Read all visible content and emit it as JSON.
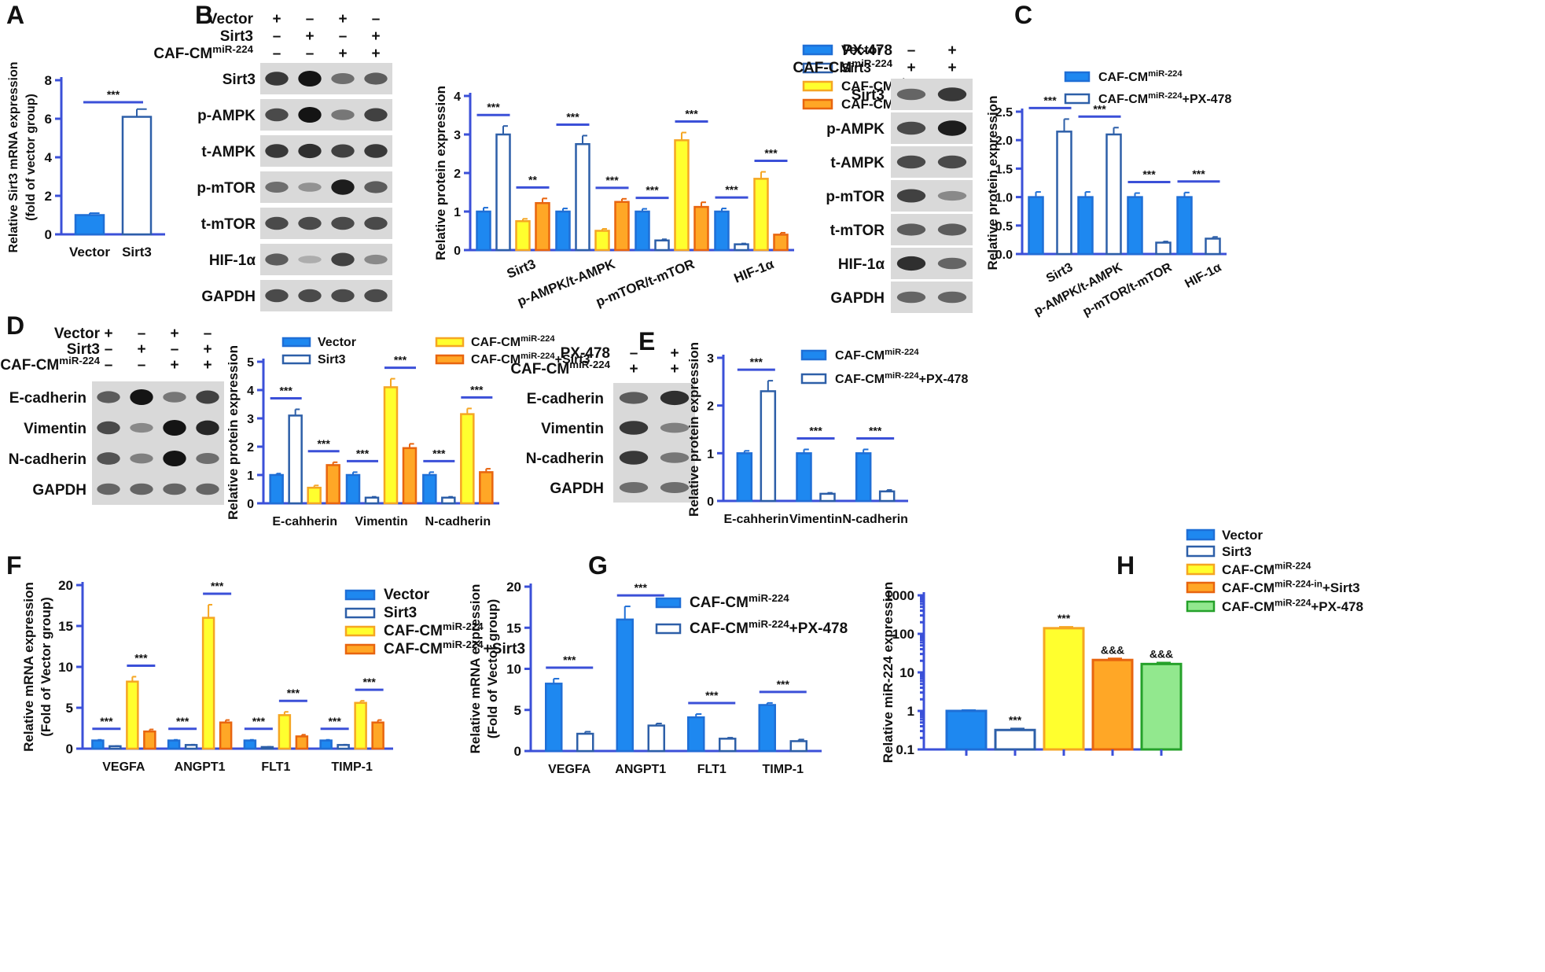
{
  "panels": {
    "A": {
      "letter": "A"
    },
    "B": {
      "letter": "B",
      "treat_rows": [
        {
          "label": "Vector",
          "signs": [
            "+",
            "–",
            "+",
            "–"
          ]
        },
        {
          "label": "Sirt3",
          "signs": [
            "–",
            "+",
            "–",
            "+"
          ]
        },
        {
          "label": "CAF-CM",
          "sup": "miR-224",
          "signs": [
            "–",
            "–",
            "+",
            "+"
          ]
        }
      ],
      "blot_labels": [
        "Sirt3",
        "p-AMPK",
        "t-AMPK",
        "p-mTOR",
        "t-mTOR",
        "HIF-1α",
        "GAPDH"
      ],
      "band_intensity": [
        [
          0.8,
          1.0,
          0.5,
          0.6
        ],
        [
          0.7,
          1.0,
          0.45,
          0.75
        ],
        [
          0.8,
          0.85,
          0.75,
          0.8
        ],
        [
          0.5,
          0.3,
          0.95,
          0.6
        ],
        [
          0.7,
          0.7,
          0.7,
          0.7
        ],
        [
          0.6,
          0.15,
          0.75,
          0.35
        ],
        [
          0.7,
          0.7,
          0.7,
          0.7
        ]
      ]
    },
    "C": {
      "letter": "C",
      "treat_rows": [
        {
          "label": "PX-478",
          "signs": [
            "–",
            "+"
          ]
        },
        {
          "label": "CAF-CM",
          "sup": "miR-224",
          "signs": [
            "+",
            "+"
          ]
        }
      ],
      "blot_labels": [
        "Sirt3",
        "p-AMPK",
        "t-AMPK",
        "p-mTOR",
        "t-mTOR",
        "HIF-1α",
        "GAPDH"
      ],
      "band_intensity": [
        [
          0.55,
          0.8
        ],
        [
          0.7,
          0.95
        ],
        [
          0.7,
          0.7
        ],
        [
          0.75,
          0.35
        ],
        [
          0.6,
          0.6
        ],
        [
          0.85,
          0.55
        ],
        [
          0.55,
          0.55
        ]
      ]
    },
    "D": {
      "letter": "D",
      "treat_rows": [
        {
          "label": "Vector",
          "signs": [
            "+",
            "–",
            "+",
            "–"
          ]
        },
        {
          "label": "Sirt3",
          "signs": [
            "–",
            "+",
            "–",
            "+"
          ]
        },
        {
          "label": "CAF-CM",
          "sup": "miR-224",
          "signs": [
            "–",
            "–",
            "+",
            "+"
          ]
        }
      ],
      "blot_labels": [
        "E-cadherin",
        "Vimentin",
        "N-cadherin",
        "GAPDH"
      ],
      "band_intensity": [
        [
          0.6,
          1.0,
          0.45,
          0.75
        ],
        [
          0.7,
          0.35,
          1.0,
          0.9
        ],
        [
          0.65,
          0.4,
          1.0,
          0.5
        ],
        [
          0.55,
          0.55,
          0.55,
          0.55
        ]
      ]
    },
    "E": {
      "letter": "E",
      "treat_rows": [
        {
          "label": "PX-478",
          "signs": [
            "–",
            "+"
          ]
        },
        {
          "label": "CAF-CM",
          "sup": "miR-224",
          "signs": [
            "+",
            "+"
          ]
        }
      ],
      "blot_labels": [
        "E-cadherin",
        "Vimentin",
        "N-cadherin",
        "GAPDH"
      ],
      "band_intensity": [
        [
          0.6,
          0.85
        ],
        [
          0.8,
          0.4
        ],
        [
          0.8,
          0.45
        ],
        [
          0.5,
          0.5
        ]
      ]
    },
    "F": {
      "letter": "F"
    },
    "G": {
      "letter": "G"
    },
    "H": {
      "letter": "H"
    }
  },
  "chart_data": [
    {
      "id": "A",
      "type": "bar",
      "ylabel": "Relative Sirt3 mRNA expression",
      "ylabel2": "(fold of vector group)",
      "categories": [
        "Vector",
        "Sirt3"
      ],
      "series": [
        {
          "name": "",
          "values": [
            1.0,
            6.1
          ],
          "errors": [
            0.1,
            0.4
          ],
          "styles": [
            "solid-blue",
            "open-blue"
          ]
        }
      ],
      "ylim": [
        0,
        8
      ],
      "yticks": [
        0,
        2,
        4,
        6,
        8
      ],
      "significance": [
        {
          "label": "***"
        }
      ]
    },
    {
      "id": "B",
      "type": "bar",
      "ylabel": "Relative protein expression",
      "categories": [
        "Sirt3",
        "p-AMPK/t-AMPK",
        "p-mTOR/t-mTOR",
        "HIF-1α"
      ],
      "series": [
        {
          "name": "Vector",
          "values": [
            1.0,
            1.0,
            1.0,
            1.0
          ],
          "errors": [
            0.1,
            0.08,
            0.07,
            0.08
          ]
        },
        {
          "name": "Sirt3",
          "values": [
            3.0,
            2.75,
            0.25,
            0.15
          ],
          "errors": [
            0.22,
            0.22,
            0.03,
            0.02
          ]
        },
        {
          "name": "CAF-CM",
          "sup": "miR-224",
          "values": [
            0.75,
            0.5,
            2.85,
            1.85
          ],
          "errors": [
            0.06,
            0.05,
            0.2,
            0.18
          ]
        },
        {
          "name": "CAF-CM",
          "sup": "miR-224",
          "suffix": "+Sirt3",
          "values": [
            1.22,
            1.25,
            1.12,
            0.4
          ],
          "errors": [
            0.12,
            0.08,
            0.12,
            0.05
          ]
        }
      ],
      "ylim": [
        0,
        4
      ],
      "yticks": [
        0,
        1,
        2,
        3,
        4
      ],
      "significance": [
        {
          "label": "***"
        },
        {
          "label": "**"
        },
        {
          "label": "***"
        },
        {
          "label": "***"
        },
        {
          "label": "***"
        },
        {
          "label": "***"
        },
        {
          "label": "***"
        },
        {
          "label": "***"
        }
      ]
    },
    {
      "id": "C",
      "type": "bar",
      "ylabel": "Relative protein expression",
      "categories": [
        "Sirt3",
        "p-AMPK/t-AMPK",
        "p-mTOR/t-mTOR",
        "HIF-1α"
      ],
      "series": [
        {
          "name": "CAF-CM",
          "sup": "miR-224",
          "values": [
            1.0,
            1.0,
            1.0,
            1.0
          ],
          "errors": [
            0.09,
            0.09,
            0.07,
            0.08
          ]
        },
        {
          "name": "CAF-CM",
          "sup": "miR-224",
          "suffix": "+PX-478",
          "values": [
            2.15,
            2.1,
            0.2,
            0.27
          ],
          "errors": [
            0.22,
            0.12,
            0.02,
            0.03
          ]
        }
      ],
      "ylim": [
        0,
        2.5
      ],
      "yticks": [
        0.0,
        0.5,
        1.0,
        1.5,
        2.0,
        2.5
      ],
      "significance": [
        {
          "label": "***"
        },
        {
          "label": "***"
        },
        {
          "label": "***"
        },
        {
          "label": "***"
        }
      ]
    },
    {
      "id": "D",
      "type": "bar",
      "ylabel": "Relative protein expression",
      "categories": [
        "E-cahherin",
        "Vimentin",
        "N-cadherin"
      ],
      "series": [
        {
          "name": "Vector",
          "values": [
            1.0,
            1.0,
            1.0
          ],
          "errors": [
            0.05,
            0.1,
            0.1
          ]
        },
        {
          "name": "Sirt3",
          "values": [
            3.1,
            0.2,
            0.2
          ],
          "errors": [
            0.22,
            0.03,
            0.03
          ]
        },
        {
          "name": "CAF-CM",
          "sup": "miR-224",
          "values": [
            0.55,
            4.1,
            3.15
          ],
          "errors": [
            0.08,
            0.3,
            0.2
          ]
        },
        {
          "name": "CAF-CM",
          "sup": "miR-224",
          "suffix": "+Sirt3",
          "values": [
            1.35,
            1.95,
            1.1
          ],
          "errors": [
            0.1,
            0.15,
            0.12
          ]
        }
      ],
      "ylim": [
        0,
        5
      ],
      "yticks": [
        0,
        1,
        2,
        3,
        4,
        5
      ],
      "significance": [
        {
          "label": "***"
        },
        {
          "label": "***"
        },
        {
          "label": "***"
        },
        {
          "label": "***"
        },
        {
          "label": "***"
        },
        {
          "label": "***"
        }
      ]
    },
    {
      "id": "E",
      "type": "bar",
      "ylabel": "Relative protein expression",
      "categories": [
        "E-cahherin",
        "Vimentin",
        "N-cadherin"
      ],
      "series": [
        {
          "name": "CAF-CM",
          "sup": "miR-224",
          "values": [
            1.0,
            1.0,
            1.0
          ],
          "errors": [
            0.05,
            0.08,
            0.08
          ]
        },
        {
          "name": "CAF-CM",
          "sup": "miR-224",
          "suffix": "+PX-478",
          "values": [
            2.3,
            0.15,
            0.2
          ],
          "errors": [
            0.22,
            0.02,
            0.03
          ]
        }
      ],
      "ylim": [
        0,
        3
      ],
      "yticks": [
        0,
        1,
        2,
        3
      ],
      "significance": [
        {
          "label": "***"
        },
        {
          "label": "***"
        },
        {
          "label": "***"
        }
      ]
    },
    {
      "id": "F",
      "type": "bar",
      "ylabel": "Relative mRNA expression",
      "ylabel2": "(Fold of Vector group)",
      "categories": [
        "VEGFA",
        "ANGPT1",
        "FLT1",
        "TIMP-1"
      ],
      "series": [
        {
          "name": "Vector",
          "values": [
            1.0,
            1.0,
            1.0,
            1.0
          ],
          "errors": [
            0.08,
            0.08,
            0.08,
            0.08
          ]
        },
        {
          "name": "Sirt3",
          "values": [
            0.3,
            0.45,
            0.2,
            0.45
          ],
          "errors": [
            0.03,
            0.04,
            0.03,
            0.04
          ]
        },
        {
          "name": "CAF-CM",
          "sup": "miR-224",
          "values": [
            8.2,
            16.0,
            4.1,
            5.6
          ],
          "errors": [
            0.6,
            1.6,
            0.4,
            0.25
          ]
        },
        {
          "name": "CAF-CM",
          "sup": "miR-224",
          "suffix": "+Sirt3",
          "values": [
            2.1,
            3.2,
            1.5,
            3.2
          ],
          "errors": [
            0.25,
            0.3,
            0.2,
            0.3
          ]
        }
      ],
      "ylim": [
        0,
        20
      ],
      "yticks": [
        0,
        5,
        10,
        15,
        20
      ],
      "significance": [
        {
          "label": "***"
        },
        {
          "label": "***"
        },
        {
          "label": "***"
        },
        {
          "label": "***"
        },
        {
          "label": "***"
        },
        {
          "label": "***"
        },
        {
          "label": "***"
        },
        {
          "label": "***"
        }
      ]
    },
    {
      "id": "G",
      "type": "bar",
      "ylabel": "Relative mRNA expression",
      "ylabel2": "(Fold of Vector group)",
      "categories": [
        "VEGFA",
        "ANGPT1",
        "FLT1",
        "TIMP-1"
      ],
      "series": [
        {
          "name": "CAF-CM",
          "sup": "miR-224",
          "values": [
            8.2,
            16.0,
            4.1,
            5.6
          ],
          "errors": [
            0.6,
            1.6,
            0.4,
            0.25
          ]
        },
        {
          "name": "CAF-CM",
          "sup": "miR-224",
          "suffix": "+PX-478",
          "values": [
            2.1,
            3.1,
            1.5,
            1.2
          ],
          "errors": [
            0.25,
            0.25,
            0.12,
            0.2
          ]
        }
      ],
      "ylim": [
        0,
        20
      ],
      "yticks": [
        0,
        5,
        10,
        15,
        20
      ],
      "significance": [
        {
          "label": "***"
        },
        {
          "label": "***"
        },
        {
          "label": "***"
        },
        {
          "label": "***"
        }
      ]
    },
    {
      "id": "H",
      "type": "bar",
      "ylabel": "Relative miR-224 expression",
      "yscale": "log",
      "series": [
        {
          "name": "Vector",
          "values": [
            1.0
          ],
          "errors": [
            0.05
          ]
        },
        {
          "name": "Sirt3",
          "values": [
            0.32
          ],
          "errors": [
            0.03
          ]
        },
        {
          "name": "CAF-CM",
          "sup": "miR-224",
          "values": [
            140
          ],
          "errors": [
            12
          ]
        },
        {
          "name": "CAF-CM",
          "sup": "miR-224-in",
          "suffix": "+Sirt3",
          "values": [
            21
          ],
          "errors": [
            2
          ]
        },
        {
          "name": "CAF-CM",
          "sup": "miR-224",
          "suffix": "+PX-478",
          "values": [
            16.5
          ],
          "errors": [
            1.5
          ]
        }
      ],
      "ylim": [
        0.1,
        1000
      ],
      "yticks": [
        "0.1",
        "1",
        "10",
        "100",
        "1000"
      ],
      "bar_labels": [
        "",
        "***",
        "***",
        "&&&",
        "&&&"
      ]
    }
  ],
  "colors": {
    "blue": "#1e88f0",
    "blue_edge": "#1f6fd6",
    "open_edge": "#2d5fa8",
    "yellow": "#ffff2e",
    "yellow_edge": "#f5a623",
    "orange": "#ffa726",
    "orange_edge": "#e8650f",
    "green": "#92e88e",
    "green_edge": "#25a12a",
    "axis": "#3b50d8"
  }
}
